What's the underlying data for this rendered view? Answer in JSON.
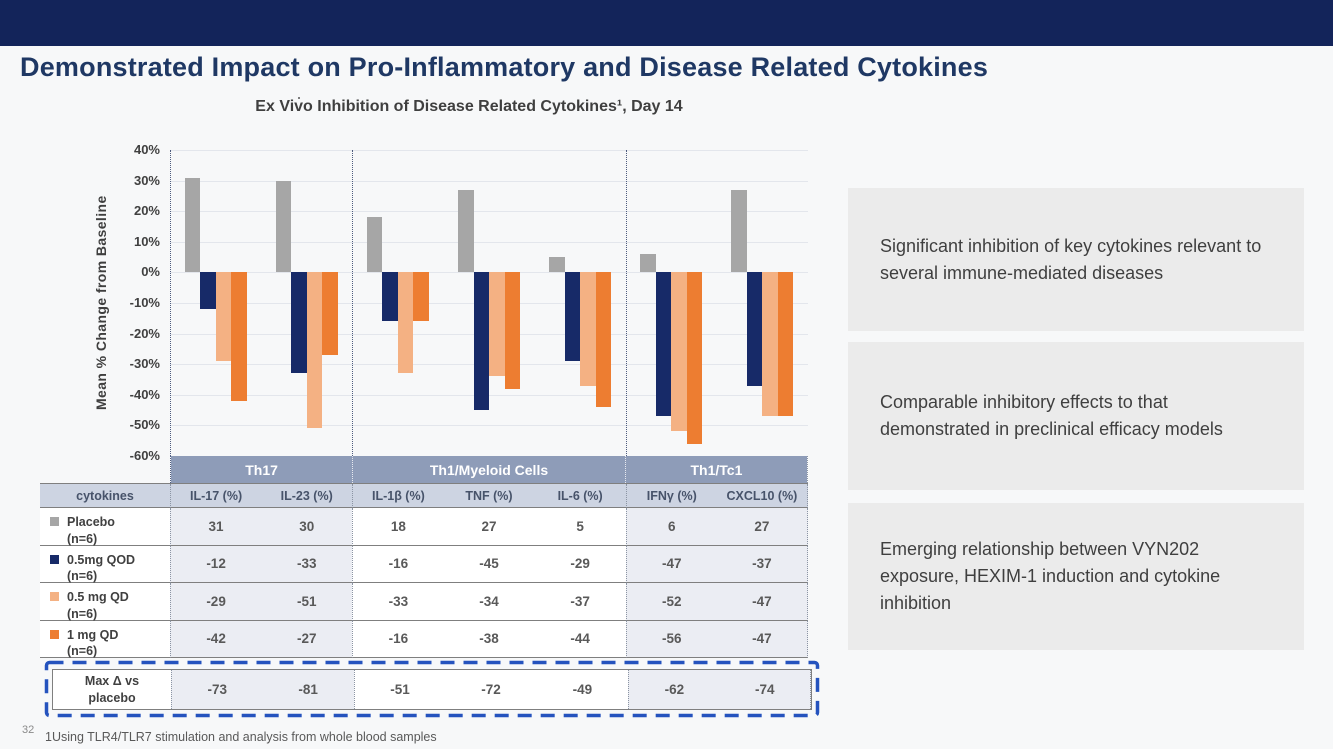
{
  "slide": {
    "title": "Demonstrated Impact on Pro-Inflammatory and Disease Related Cytokines",
    "page_number": "32",
    "footnote": "1Using TLR4/TLR7 stimulation and analysis from whole blood samples"
  },
  "chart_data": {
    "type": "bar",
    "title": "Ex Vivo Inhibition of Disease Related Cytokines¹, Day 14",
    "xlabel": "",
    "ylabel": "Mean % Change from Baseline",
    "ylim": [
      -60,
      40
    ],
    "ytick_step": 10,
    "ytick_labels": [
      "40%",
      "30%",
      "20%",
      "10%",
      "0%",
      "-10%",
      "-20%",
      "-30%",
      "-40%",
      "-50%",
      "-60%"
    ],
    "grid": true,
    "legend_position": "table-rows",
    "categories": [
      "IL-17 (%)",
      "IL-23 (%)",
      "IL-1β (%)",
      "TNF (%)",
      "IL-6 (%)",
      "IFNγ (%)",
      "CXCL10 (%)"
    ],
    "groups": [
      {
        "label": "Th17",
        "span": 2
      },
      {
        "label": "Th1/Myeloid Cells",
        "span": 3
      },
      {
        "label": "Th1/Tc1",
        "span": 2
      }
    ],
    "series": [
      {
        "name": "Placebo (n=6)",
        "color": "#A6A6A6",
        "values": [
          31,
          30,
          18,
          27,
          5,
          6,
          27
        ]
      },
      {
        "name": "0.5mg QOD (n=6)",
        "color": "#172A68",
        "values": [
          -12,
          -33,
          -16,
          -45,
          -29,
          -47,
          -37
        ]
      },
      {
        "name": "0.5 mg QD (n=6)",
        "color": "#F4B183",
        "values": [
          -29,
          -51,
          -33,
          -34,
          -37,
          -52,
          -47
        ]
      },
      {
        "name": "1 mg QD (n=6)",
        "color": "#ED7D31",
        "values": [
          -42,
          -27,
          -16,
          -38,
          -44,
          -56,
          -47
        ]
      }
    ]
  },
  "table": {
    "corner_header": "cytokines",
    "column_headers": [
      "IL-17 (%)",
      "IL-23 (%)",
      "IL-1β (%)",
      "TNF (%)",
      "IL-6 (%)",
      "IFNγ (%)",
      "CXCL10 (%)"
    ],
    "shaded_columns": [
      0,
      1,
      5,
      6
    ],
    "group_start_columns": [
      0,
      2,
      5
    ],
    "rows": [
      {
        "label": "Placebo",
        "sublabel": "(n=6)",
        "swatch": "#A6A6A6",
        "values": [
          "31",
          "30",
          "18",
          "27",
          "5",
          "6",
          "27"
        ]
      },
      {
        "label": "0.5mg QOD",
        "sublabel": "(n=6)",
        "swatch": "#172A68",
        "values": [
          "-12",
          "-33",
          "-16",
          "-45",
          "-29",
          "-47",
          "-37"
        ]
      },
      {
        "label": "0.5 mg QD",
        "sublabel": "(n=6)",
        "swatch": "#F4B183",
        "values": [
          "-29",
          "-51",
          "-33",
          "-34",
          "-37",
          "-52",
          "-47"
        ]
      },
      {
        "label": "1 mg QD",
        "sublabel": "(n=6)",
        "swatch": "#ED7D31",
        "values": [
          "-42",
          "-27",
          "-16",
          "-38",
          "-44",
          "-56",
          "-47"
        ]
      }
    ],
    "max_row": {
      "label": "Max Δ vs",
      "sublabel": "placebo",
      "values": [
        "-73",
        "-81",
        "-51",
        "-72",
        "-49",
        "-62",
        "-74"
      ]
    }
  },
  "right_panels": [
    {
      "text": "Significant inhibition of key cytokines relevant to several immune-mediated diseases"
    },
    {
      "text": "Comparable inhibitory effects to that demonstrated in preclinical efficacy models"
    },
    {
      "text": "Emerging relationship between VYN202 exposure, HEXIM-1 induction and cytokine inhibition"
    }
  ],
  "colors": {
    "header_bar": "#13245A",
    "title": "#1F3864",
    "band_bg": "#8E9CB8",
    "table_header_bg": "#CDD4E2",
    "shaded_cell_bg": "#EBEDF3",
    "panel_bg": "#EBEBEB",
    "dashed_highlight": "#2553BE",
    "gridline": "#E3E6EC"
  }
}
